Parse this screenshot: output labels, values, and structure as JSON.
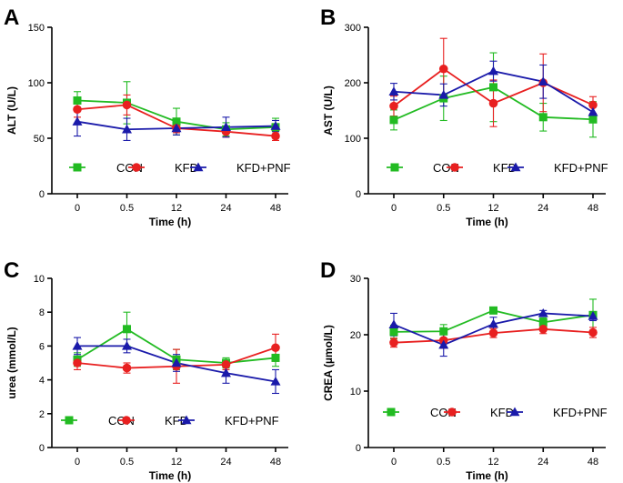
{
  "colors": {
    "CON": "#22bb22",
    "KFD": "#e82020",
    "KFD+PNF": "#1a1aaa"
  },
  "chart_data": [
    {
      "type": "line",
      "panel_label": "A",
      "ylabel": "ALT (U/L)",
      "xlabel": "Time (h)",
      "categories": [
        "0",
        "0.5",
        "12",
        "24",
        "48"
      ],
      "ylim": [
        0,
        150
      ],
      "yticks": [
        "0",
        "50",
        "100",
        "150"
      ],
      "legend": [
        "CON",
        "KFD",
        "KFD+PNF"
      ],
      "series": [
        {
          "name": "CON",
          "marker": "square",
          "values": [
            84,
            82,
            65,
            58,
            60
          ],
          "err": [
            8,
            19,
            12,
            6,
            8
          ]
        },
        {
          "name": "KFD",
          "marker": "circle",
          "values": [
            76,
            80,
            59,
            56,
            52
          ],
          "err": [
            7,
            9,
            4,
            5,
            4
          ]
        },
        {
          "name": "KFD+PNF",
          "marker": "triangle",
          "values": [
            65,
            58,
            59,
            60,
            61
          ],
          "err": [
            13,
            10,
            6,
            9,
            5
          ]
        }
      ]
    },
    {
      "type": "line",
      "panel_label": "B",
      "ylabel": "AST (U/L)",
      "xlabel": "Time (h)",
      "categories": [
        "0",
        "0.5",
        "12",
        "24",
        "48"
      ],
      "ylim": [
        0,
        300
      ],
      "yticks": [
        "0",
        "100",
        "200",
        "300"
      ],
      "legend": [
        "CON",
        "KFD",
        "KFD+PNF"
      ],
      "series": [
        {
          "name": "CON",
          "marker": "square",
          "values": [
            133,
            172,
            192,
            138,
            134
          ],
          "err": [
            18,
            40,
            62,
            25,
            32
          ]
        },
        {
          "name": "KFD",
          "marker": "circle",
          "values": [
            158,
            225,
            163,
            200,
            160
          ],
          "err": [
            18,
            55,
            42,
            52,
            15
          ]
        },
        {
          "name": "KFD+PNF",
          "marker": "triangle",
          "values": [
            184,
            178,
            221,
            202,
            147
          ],
          "err": [
            15,
            20,
            18,
            30,
            15
          ]
        }
      ]
    },
    {
      "type": "line",
      "panel_label": "C",
      "ylabel": "urea (mmol/L)",
      "xlabel": "Time (h)",
      "categories": [
        "0",
        "0.5",
        "12",
        "24",
        "48"
      ],
      "ylim": [
        0,
        10
      ],
      "yticks": [
        "0",
        "2",
        "4",
        "6",
        "8",
        "10"
      ],
      "legend": [
        "CON",
        "KFD",
        "KFD+PNF"
      ],
      "series": [
        {
          "name": "CON",
          "marker": "square",
          "values": [
            5.2,
            7.0,
            5.2,
            5.0,
            5.3
          ],
          "err": [
            0.4,
            1.0,
            0.6,
            0.3,
            0.5
          ]
        },
        {
          "name": "KFD",
          "marker": "circle",
          "values": [
            5.0,
            4.7,
            4.8,
            4.9,
            5.9
          ],
          "err": [
            0.4,
            0.3,
            1.0,
            0.3,
            0.8
          ]
        },
        {
          "name": "KFD+PNF",
          "marker": "triangle",
          "values": [
            6.0,
            6.0,
            5.0,
            4.4,
            3.9
          ],
          "err": [
            0.5,
            0.4,
            0.5,
            0.6,
            0.7
          ]
        }
      ]
    },
    {
      "type": "line",
      "panel_label": "D",
      "ylabel": "CREA (µmol/L)",
      "xlabel": "Time (h)",
      "categories": [
        "0",
        "0.5",
        "12",
        "24",
        "48"
      ],
      "ylim": [
        0,
        30
      ],
      "yticks": [
        "0",
        "10",
        "20",
        "30"
      ],
      "legend": [
        "CON",
        "KFD",
        "KFD+PNF"
      ],
      "series": [
        {
          "name": "CON",
          "marker": "square",
          "values": [
            20.5,
            20.6,
            24.3,
            22.2,
            23.5
          ],
          "err": [
            1.2,
            1.2,
            0.5,
            0.8,
            2.8
          ]
        },
        {
          "name": "KFD",
          "marker": "circle",
          "values": [
            18.6,
            19.0,
            20.3,
            21.0,
            20.4
          ],
          "err": [
            0.8,
            1.4,
            0.8,
            0.8,
            0.9
          ]
        },
        {
          "name": "KFD+PNF",
          "marker": "triangle",
          "values": [
            21.8,
            18.2,
            21.9,
            23.8,
            23.3
          ],
          "err": [
            2.0,
            2.0,
            1.2,
            0.5,
            0.8
          ]
        }
      ]
    }
  ]
}
